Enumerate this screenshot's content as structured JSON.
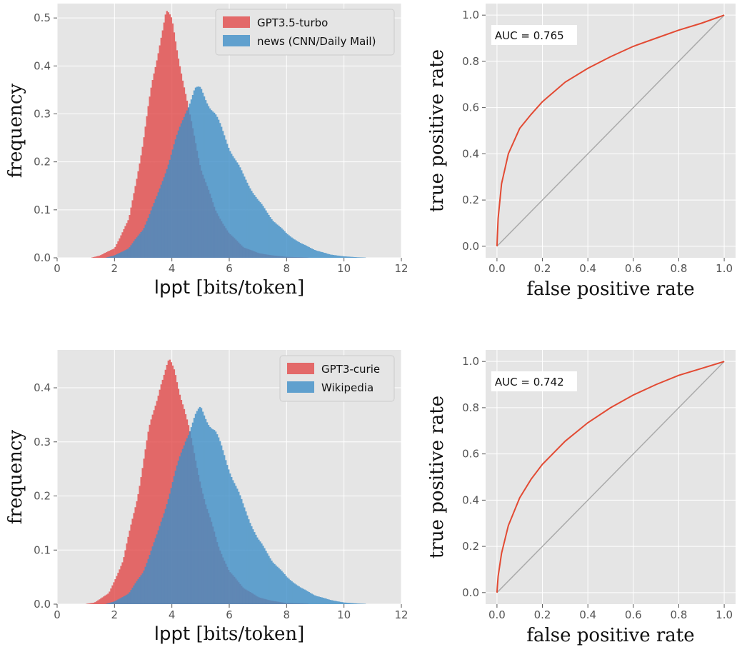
{
  "chart_data": [
    {
      "type": "histogram",
      "xlabel_main": "lppt",
      "xlabel_unit": " [bits/token]",
      "ylabel": "frequency",
      "xlim": [
        0,
        12
      ],
      "ylim": [
        0,
        0.53
      ],
      "xticks": [
        0,
        2,
        4,
        6,
        8,
        10,
        12
      ],
      "xtick_labels": [
        "0",
        "2",
        "4",
        "6",
        "8",
        "10",
        "12"
      ],
      "yticks": [
        0.0,
        0.1,
        0.2,
        0.3,
        0.4,
        0.5
      ],
      "ytick_labels": [
        "0.0",
        "0.1",
        "0.2",
        "0.3",
        "0.4",
        "0.5"
      ],
      "legend_position": "top-right",
      "series": [
        {
          "name": "GPT3.5-turbo",
          "color": "#e24a4a",
          "x": [
            1.5,
            2.0,
            2.5,
            3.0,
            3.3,
            3.6,
            3.8,
            4.0,
            4.3,
            4.6,
            5.0,
            5.5,
            6.0,
            6.5,
            7.0,
            7.5,
            8.0,
            8.5
          ],
          "y": [
            0.005,
            0.02,
            0.08,
            0.24,
            0.36,
            0.46,
            0.51,
            0.49,
            0.4,
            0.3,
            0.19,
            0.1,
            0.05,
            0.022,
            0.01,
            0.005,
            0.002,
            0.001
          ]
        },
        {
          "name": "news (CNN/Daily Mail)",
          "color": "#3f8fc8",
          "x": [
            2.0,
            2.5,
            3.0,
            3.5,
            4.0,
            4.5,
            4.8,
            5.0,
            5.5,
            6.0,
            6.5,
            7.0,
            7.5,
            8.0,
            8.5,
            9.0,
            9.5,
            10.0,
            10.5
          ],
          "y": [
            0.005,
            0.02,
            0.06,
            0.13,
            0.22,
            0.31,
            0.35,
            0.35,
            0.3,
            0.23,
            0.17,
            0.12,
            0.08,
            0.05,
            0.03,
            0.016,
            0.007,
            0.003,
            0.001
          ]
        }
      ]
    },
    {
      "type": "line",
      "xlabel": "false positive rate",
      "ylabel": "true positive rate",
      "xlim": [
        -0.05,
        1.05
      ],
      "ylim": [
        -0.05,
        1.05
      ],
      "xticks": [
        0.0,
        0.2,
        0.4,
        0.6,
        0.8,
        1.0
      ],
      "xtick_labels": [
        "0.0",
        "0.2",
        "0.4",
        "0.6",
        "0.8",
        "1.0"
      ],
      "yticks": [
        0.0,
        0.2,
        0.4,
        0.6,
        0.8,
        1.0
      ],
      "ytick_labels": [
        "0.0",
        "0.2",
        "0.4",
        "0.6",
        "0.8",
        "1.0"
      ],
      "annotation": "AUC = 0.765",
      "roc_color": "#e24a33",
      "diag_color": "#aaaaaa",
      "roc": {
        "x": [
          0,
          0.005,
          0.02,
          0.05,
          0.1,
          0.15,
          0.2,
          0.3,
          0.4,
          0.5,
          0.6,
          0.7,
          0.8,
          0.9,
          1.0
        ],
        "y": [
          0,
          0.12,
          0.27,
          0.4,
          0.51,
          0.57,
          0.625,
          0.71,
          0.77,
          0.82,
          0.865,
          0.9,
          0.935,
          0.965,
          1.0
        ]
      }
    },
    {
      "type": "histogram",
      "xlabel_main": "lppt",
      "xlabel_unit": " [bits/token]",
      "ylabel": "frequency",
      "xlim": [
        0,
        12
      ],
      "ylim": [
        0,
        0.47
      ],
      "xticks": [
        0,
        2,
        4,
        6,
        8,
        10,
        12
      ],
      "xtick_labels": [
        "0",
        "2",
        "4",
        "6",
        "8",
        "10",
        "12"
      ],
      "yticks": [
        0.0,
        0.1,
        0.2,
        0.3,
        0.4
      ],
      "ytick_labels": [
        "0.0",
        "0.1",
        "0.2",
        "0.3",
        "0.4"
      ],
      "legend_position": "top-right",
      "series": [
        {
          "name": "GPT3-curie",
          "color": "#e24a4a",
          "x": [
            1.3,
            1.8,
            2.3,
            2.8,
            3.2,
            3.6,
            3.9,
            4.1,
            4.4,
            4.8,
            5.2,
            5.6,
            6.0,
            6.5,
            7.0,
            7.5,
            8.0,
            8.5
          ],
          "y": [
            0.003,
            0.02,
            0.08,
            0.2,
            0.32,
            0.41,
            0.445,
            0.43,
            0.37,
            0.27,
            0.18,
            0.11,
            0.06,
            0.03,
            0.013,
            0.006,
            0.002,
            0.001
          ]
        },
        {
          "name": "Wikipedia",
          "color": "#3f8fc8",
          "x": [
            2.0,
            2.5,
            3.0,
            3.5,
            4.0,
            4.5,
            4.8,
            5.0,
            5.5,
            6.0,
            6.5,
            7.0,
            7.5,
            8.0,
            8.5,
            9.0,
            9.5,
            10.0,
            10.5
          ],
          "y": [
            0.005,
            0.02,
            0.06,
            0.13,
            0.22,
            0.31,
            0.345,
            0.36,
            0.32,
            0.25,
            0.18,
            0.12,
            0.08,
            0.05,
            0.03,
            0.016,
            0.008,
            0.003,
            0.001
          ]
        }
      ]
    },
    {
      "type": "line",
      "xlabel": "false positive rate",
      "ylabel": "true positive rate",
      "xlim": [
        -0.05,
        1.05
      ],
      "ylim": [
        -0.05,
        1.05
      ],
      "xticks": [
        0.0,
        0.2,
        0.4,
        0.6,
        0.8,
        1.0
      ],
      "xtick_labels": [
        "0.0",
        "0.2",
        "0.4",
        "0.6",
        "0.8",
        "1.0"
      ],
      "yticks": [
        0.0,
        0.2,
        0.4,
        0.6,
        0.8,
        1.0
      ],
      "ytick_labels": [
        "0.0",
        "0.2",
        "0.4",
        "0.6",
        "0.8",
        "1.0"
      ],
      "annotation": "AUC = 0.742",
      "roc_color": "#e24a33",
      "diag_color": "#aaaaaa",
      "roc": {
        "x": [
          0,
          0.005,
          0.02,
          0.05,
          0.1,
          0.15,
          0.2,
          0.3,
          0.4,
          0.5,
          0.6,
          0.7,
          0.8,
          0.9,
          1.0
        ],
        "y": [
          0,
          0.07,
          0.17,
          0.29,
          0.41,
          0.49,
          0.555,
          0.655,
          0.735,
          0.8,
          0.855,
          0.9,
          0.94,
          0.97,
          1.0
        ]
      }
    }
  ]
}
